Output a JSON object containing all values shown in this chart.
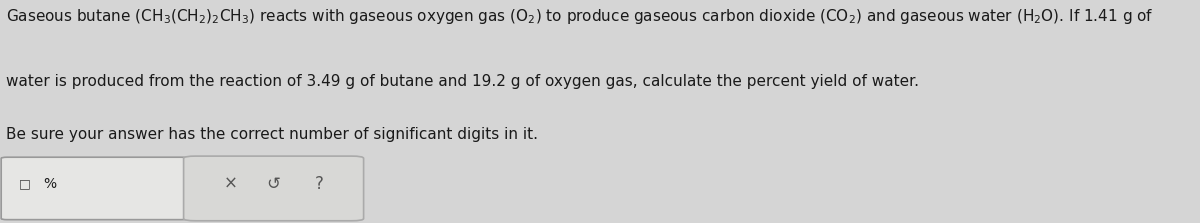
{
  "background_color": "#d5d5d5",
  "text_line1": "Gaseous butane $\\left(\\mathrm{CH_3(CH_2)_2CH_3}\\right)$ reacts with gaseous oxygen gas $\\left(\\mathrm{O_2}\\right)$ to produce gaseous carbon dioxide $\\left(\\mathrm{CO_2}\\right)$ and gaseous water $\\left(\\mathrm{H_2O}\\right)$. If 1.41 g of",
  "text_line2": "water is produced from the reaction of 3.49 g of butane and 19.2 g of oxygen gas, calculate the percent yield of water.",
  "text_line3": "Be sure your answer has the correct number of significant digits in it.",
  "input_box_color": "#e6e6e4",
  "input_box_border": "#999999",
  "percent_label": "%",
  "button_box_color": "#d8d8d6",
  "button_box_border": "#aaaaaa",
  "text_color": "#1a1a1a",
  "fontsize_main": 11.0
}
